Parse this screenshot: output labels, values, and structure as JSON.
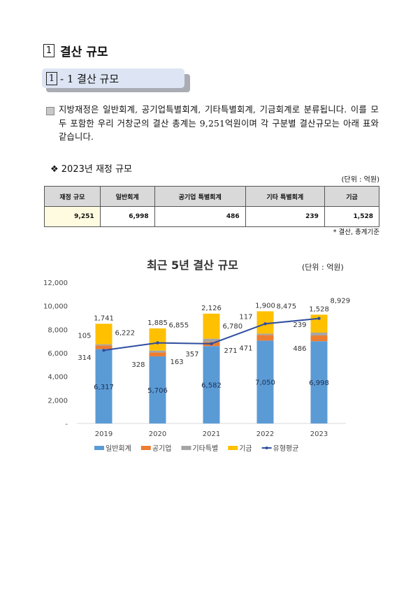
{
  "heading": {
    "num": "1",
    "title": "결산 규모"
  },
  "subheading": {
    "num": "1",
    "suffix": "- 1 결산 규모"
  },
  "paragraph": "지방재정은 일반회계, 공기업특별회계, 기타특별회계, 기금회계로 분류됩니다. 이를 모두 포함한 우리 거창군의 결산 총계는 9,251억원이며 각 구분별 결산규모는 아래 표와 같습니다.",
  "table": {
    "title": "❖ 2023년 재정 규모",
    "unit": "(단위 : 억원)",
    "headers": [
      "재정 규모",
      "일반회계",
      "공기업 특별회계",
      "기타 특별회계",
      "기금"
    ],
    "row": [
      "9,251",
      "6,998",
      "486",
      "239",
      "1,528"
    ],
    "note": "* 결산, 총계기준"
  },
  "chart_data": {
    "type": "bar",
    "stacked": true,
    "title": "최근 5년 결산 규모",
    "unit": "(단위 : 억원)",
    "categories": [
      "2019",
      "2020",
      "2021",
      "2022",
      "2023"
    ],
    "ylim": [
      0,
      12000
    ],
    "yticks": [
      "-",
      "2,000",
      "4,000",
      "6,000",
      "8,000",
      "10,000",
      "12,000"
    ],
    "grid": false,
    "legend": "bottom",
    "series": [
      {
        "name": "일반회계",
        "type": "bar",
        "color": "#5b9bd5",
        "values": [
          6317,
          5706,
          6582,
          7050,
          6998
        ],
        "labels": [
          "6,317",
          "5,706",
          "6,582",
          "7,050",
          "6,998"
        ]
      },
      {
        "name": "공기업",
        "type": "bar",
        "color": "#ed7d31",
        "values": [
          314,
          328,
          357,
          471,
          486
        ],
        "labels": [
          "314",
          "328",
          "357",
          "471",
          "486"
        ]
      },
      {
        "name": "기타특별",
        "type": "bar",
        "color": "#a5a5a5",
        "values": [
          105,
          163,
          271,
          117,
          239
        ],
        "labels": [
          "105",
          "163",
          "271",
          "117",
          "239"
        ]
      },
      {
        "name": "기금",
        "type": "bar",
        "color": "#ffc000",
        "values": [
          1741,
          1885,
          2126,
          1900,
          1528
        ],
        "labels": [
          "1,741",
          "1,885",
          "2,126",
          "1,900",
          "1,528"
        ]
      },
      {
        "name": "유형평균",
        "type": "line",
        "color": "#2f4ea0",
        "values": [
          6222,
          6855,
          6780,
          8475,
          8929
        ],
        "labels": [
          "6,222",
          "6,855",
          "6,780",
          "8,475",
          "8,929"
        ]
      }
    ]
  }
}
